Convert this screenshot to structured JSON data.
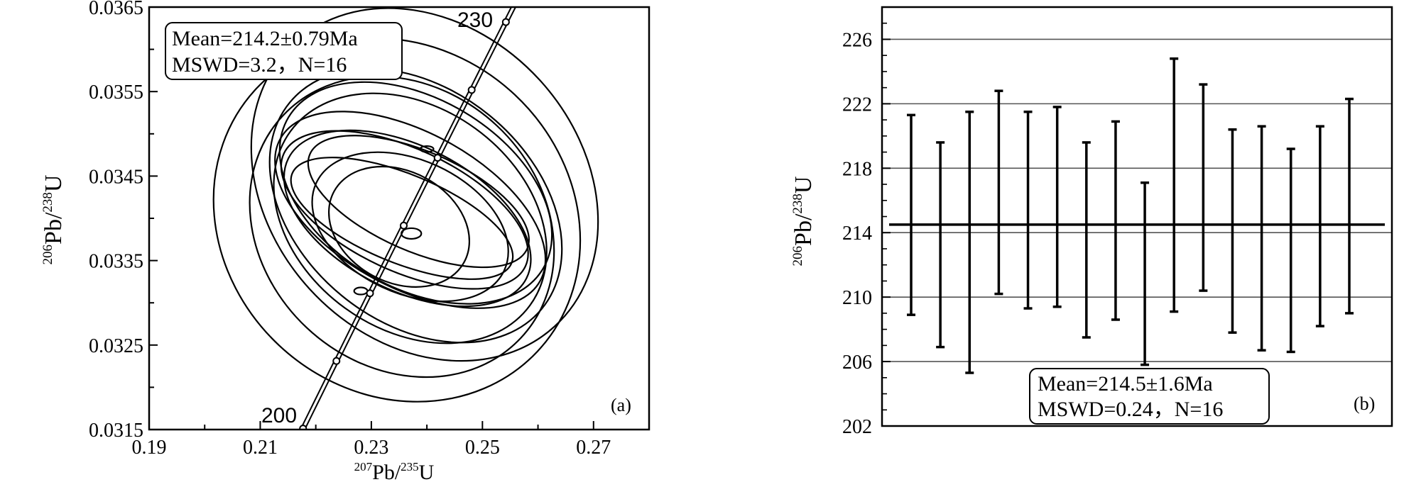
{
  "chart_data": [
    {
      "type": "scatter",
      "subtype": "concordia-error-ellipses",
      "panel_label": "(a)",
      "xlabel_parts": {
        "a_sup": "207",
        "a_base": "Pb/",
        "b_sup": "235",
        "b_base": "U"
      },
      "ylabel_parts": {
        "a_sup": "206",
        "a_base": "Pb/",
        "b_sup": "238",
        "b_base": "U"
      },
      "xlim": [
        0.19,
        0.28
      ],
      "ylim": [
        0.0315,
        0.0365
      ],
      "xticks": [
        "0.19",
        "0.21",
        "0.23",
        "0.25",
        "0.27"
      ],
      "yticks": [
        "0.0315",
        "0.0325",
        "0.0335",
        "0.0345",
        "0.0355",
        "0.0365"
      ],
      "concordia_labels": {
        "start": "200",
        "end": "230"
      },
      "concordia_range_ma": [
        200,
        230
      ],
      "annotation": {
        "line1": "Mean=214.2±0.79Ma",
        "line2": "MSWD=3.2，N=16"
      },
      "ellipses": [
        {
          "x": 0.2346,
          "y": 0.03398,
          "rx": 0.031,
          "ry": 0.0065,
          "angle": 0.0007
        },
        {
          "x": 0.2396,
          "y": 0.0344,
          "rx": 0.028,
          "ry": 0.0065,
          "angle": 0.0006
        },
        {
          "x": 0.2355,
          "y": 0.0339,
          "rx": 0.025,
          "ry": 0.0055,
          "angle": 0.0007
        },
        {
          "x": 0.238,
          "y": 0.03415,
          "rx": 0.021,
          "ry": 0.0055,
          "angle": 0.0008
        },
        {
          "x": 0.237,
          "y": 0.034,
          "rx": 0.02,
          "ry": 0.005,
          "angle": 0.0009
        },
        {
          "x": 0.238,
          "y": 0.0343,
          "rx": 0.017,
          "ry": 0.005,
          "angle": 0.0011
        },
        {
          "x": 0.237,
          "y": 0.0341,
          "rx": 0.014,
          "ry": 0.005,
          "angle": 0.0012
        },
        {
          "x": 0.2365,
          "y": 0.034,
          "rx": 0.013,
          "ry": 0.0045,
          "angle": 0.0013
        },
        {
          "x": 0.237,
          "y": 0.0339,
          "rx": 0.012,
          "ry": 0.0035,
          "angle": 0.0014
        },
        {
          "x": 0.236,
          "y": 0.0341,
          "rx": 0.011,
          "ry": 0.0045,
          "angle": 0.0014
        },
        {
          "x": 0.235,
          "y": 0.0339,
          "rx": 0.01,
          "ry": 0.0025,
          "angle": 0.0012
        },
        {
          "x": 0.2385,
          "y": 0.0342,
          "rx": 0.009,
          "ry": 0.004,
          "angle": 0.0015
        },
        {
          "x": 0.2355,
          "y": 0.034,
          "rx": 0.008,
          "ry": 0.004,
          "angle": 0.0016
        },
        {
          "x": 0.2372,
          "y": 0.03382,
          "rx": 0.0018,
          "ry": 0.00018,
          "angle": 0.0
        },
        {
          "x": 0.2281,
          "y": 0.03314,
          "rx": 0.0012,
          "ry": 0.00012,
          "angle": 0.0
        },
        {
          "x": 0.24,
          "y": 0.03482,
          "rx": 0.0012,
          "ry": 0.0001,
          "angle": 0.0
        }
      ]
    },
    {
      "type": "bar",
      "subtype": "weighted-mean-error-bars",
      "panel_label": "(b)",
      "ylabel_parts": {
        "a_sup": "206",
        "a_base": "Pb/",
        "b_sup": "238",
        "b_base": "U"
      },
      "ylim": [
        202,
        228
      ],
      "yticks": [
        "202",
        "206",
        "210",
        "214",
        "218",
        "222",
        "226"
      ],
      "gridlines": [
        206,
        210,
        214,
        218,
        222,
        226
      ],
      "mean_line": 214.5,
      "annotation": {
        "line1": "Mean=214.5±1.6Ma",
        "line2": "MSWD=0.24，N=16"
      },
      "bars": [
        {
          "low": 208.9,
          "high": 221.3
        },
        {
          "low": 206.9,
          "high": 219.6
        },
        {
          "low": 205.3,
          "high": 221.5
        },
        {
          "low": 210.2,
          "high": 222.8
        },
        {
          "low": 209.3,
          "high": 221.5
        },
        {
          "low": 209.4,
          "high": 221.8
        },
        {
          "low": 207.5,
          "high": 219.6
        },
        {
          "low": 208.6,
          "high": 220.9
        },
        {
          "low": 205.8,
          "high": 217.1
        },
        {
          "low": 209.1,
          "high": 224.8
        },
        {
          "low": 210.4,
          "high": 223.2
        },
        {
          "low": 207.8,
          "high": 220.4
        },
        {
          "low": 206.7,
          "high": 220.6
        },
        {
          "low": 206.6,
          "high": 219.2
        },
        {
          "low": 208.2,
          "high": 220.6
        },
        {
          "low": 209.0,
          "high": 222.3
        }
      ]
    }
  ]
}
